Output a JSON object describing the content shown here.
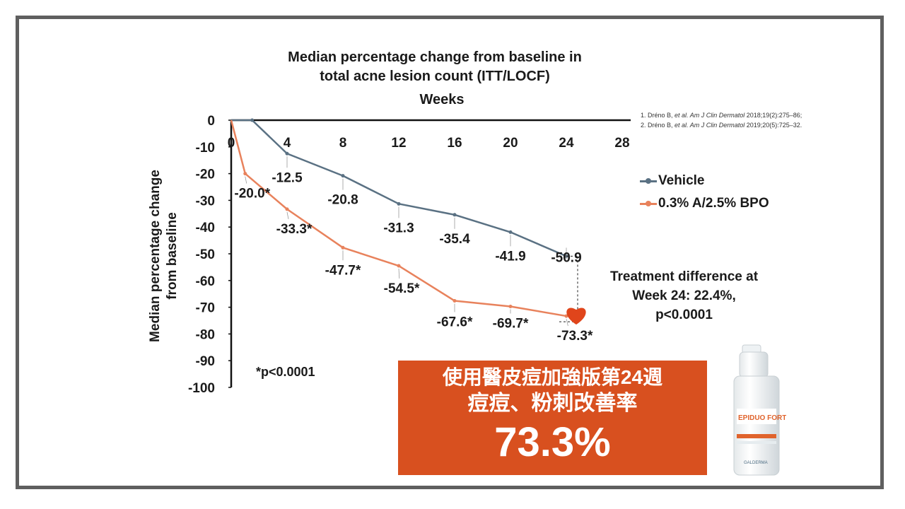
{
  "chart_data": {
    "type": "line",
    "title_line1": "Median percentage change from baseline in",
    "title_line2": "total acne lesion count (ITT/LOCF)",
    "xlabel": "Weeks",
    "ylabel_line1": "Median percentage change",
    "ylabel_line2": "from baseline",
    "xlim": [
      0,
      28
    ],
    "ylim": [
      0,
      -100
    ],
    "x_ticks": [
      "0",
      "4",
      "8",
      "12",
      "16",
      "20",
      "24",
      "28"
    ],
    "y_ticks": [
      "0",
      "-10",
      "-20",
      "-30",
      "-40",
      "-50",
      "-60",
      "-70",
      "-80",
      "-90",
      "-100"
    ],
    "x_axis_position": "top",
    "legend_position": "right",
    "series": [
      {
        "name": "Vehicle",
        "color": "#5a7183",
        "points": [
          [
            0,
            0
          ],
          [
            1.5,
            0
          ],
          [
            4,
            -12.5
          ],
          [
            8,
            -20.8
          ],
          [
            12,
            -31.3
          ],
          [
            16,
            -35.4
          ],
          [
            20,
            -41.9
          ],
          [
            24,
            -50.9
          ]
        ],
        "labels": [
          {
            "x": 4,
            "y": -12.5,
            "text": "-12.5"
          },
          {
            "x": 8,
            "y": -20.8,
            "text": "-20.8"
          },
          {
            "x": 12,
            "y": -31.3,
            "text": "-31.3"
          },
          {
            "x": 16,
            "y": -35.4,
            "text": "-35.4"
          },
          {
            "x": 20,
            "y": -41.9,
            "text": "-41.9"
          },
          {
            "x": 24,
            "y": -50.9,
            "text": "-50.9"
          }
        ]
      },
      {
        "name": "0.3% A/2.5% BPO",
        "color": "#e8825c",
        "points": [
          [
            0,
            0
          ],
          [
            1,
            -20.0
          ],
          [
            4,
            -33.3
          ],
          [
            8,
            -47.7
          ],
          [
            12,
            -54.5
          ],
          [
            16,
            -67.6
          ],
          [
            20,
            -69.7
          ],
          [
            24,
            -73.3
          ]
        ],
        "labels": [
          {
            "x": 1,
            "y": -20.0,
            "text": "-20.0*"
          },
          {
            "x": 4,
            "y": -33.3,
            "text": "-33.3*"
          },
          {
            "x": 8,
            "y": -47.7,
            "text": "-47.7*"
          },
          {
            "x": 12,
            "y": -54.5,
            "text": "-54.5*"
          },
          {
            "x": 16,
            "y": -67.6,
            "text": "-67.6*"
          },
          {
            "x": 20,
            "y": -69.7,
            "text": "-69.7*"
          },
          {
            "x": 24,
            "y": -73.3,
            "text": "-73.3*"
          }
        ]
      }
    ],
    "annotations": {
      "treatment_difference_line1": "Treatment difference at",
      "treatment_difference_line2": "Week 24: 22.4%,",
      "treatment_difference_line3": "p<0.0001",
      "p_note": "*p<0.0001"
    }
  },
  "references": {
    "ref1_prefix": "1. Dréno B, ",
    "ref1_italic": "et al. Am J Clin Dermatol",
    "ref1_suffix": " 2018;19(2):275–86;",
    "ref2_prefix": "2.    Dréno B, ",
    "ref2_italic": "et al. Am J Clin Dermatol",
    "ref2_suffix": " 2019;20(5):725–32."
  },
  "promo": {
    "line1": "使用醫皮痘加強版第24週",
    "line2": "痘痘、粉刺改善率",
    "line3": "73.3%",
    "background": "#d8501f"
  },
  "product": {
    "brand": "EPIDUO FORTE",
    "maker": "GALDERMA"
  }
}
